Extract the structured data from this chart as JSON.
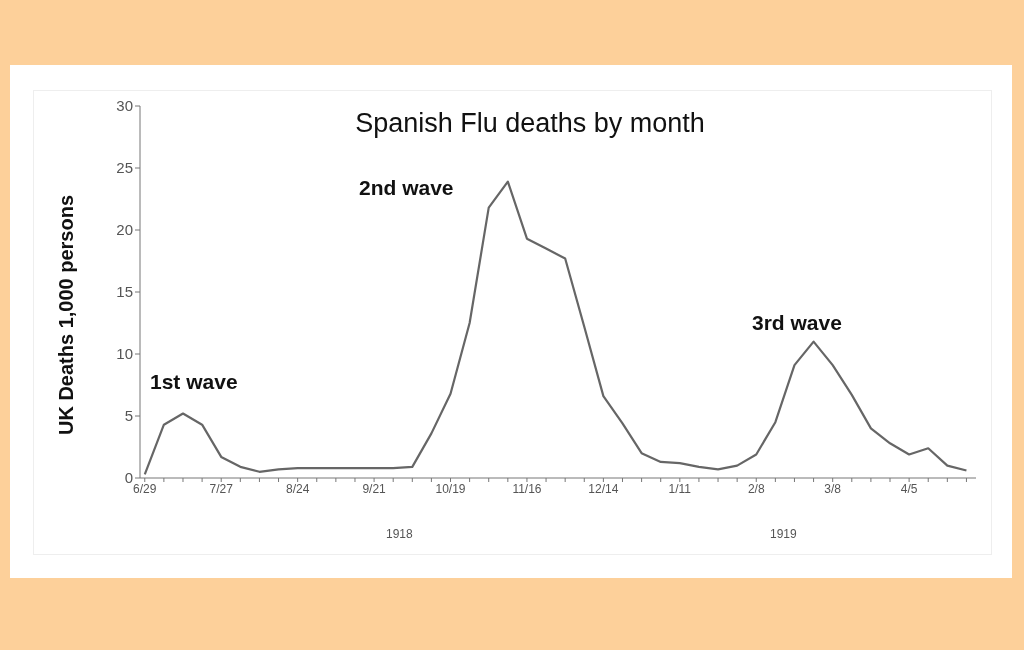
{
  "chart_data": {
    "type": "line",
    "title": "Spanish Flu deaths by month",
    "ylabel": "UK Deaths 1,000 persons",
    "categories": [
      "6/29",
      null,
      null,
      null,
      "7/27",
      null,
      null,
      null,
      "8/24",
      null,
      null,
      null,
      "9/21",
      null,
      null,
      null,
      "10/19",
      null,
      null,
      null,
      "11/16",
      null,
      null,
      null,
      "12/14",
      null,
      null,
      null,
      "1/11",
      null,
      null,
      null,
      "2/8",
      null,
      null,
      null,
      "3/8",
      null,
      null,
      null,
      "4/5",
      null,
      null,
      null
    ],
    "values": [
      0.3,
      4.3,
      5.2,
      4.3,
      1.7,
      0.9,
      0.5,
      0.7,
      0.8,
      0.8,
      0.8,
      0.8,
      0.8,
      0.8,
      0.9,
      3.6,
      6.8,
      12.5,
      21.8,
      23.9,
      19.3,
      18.5,
      17.7,
      12.2,
      6.6,
      4.4,
      2.0,
      1.3,
      1.2,
      0.9,
      0.7,
      1.0,
      1.9,
      4.5,
      9.1,
      11.0,
      9.1,
      6.7,
      4.0,
      2.8,
      1.9,
      2.4,
      1.0,
      0.6
    ],
    "color": "#666666",
    "ylim": [
      0,
      30
    ],
    "yticks": [
      0,
      5,
      10,
      15,
      20,
      25,
      30
    ],
    "grid": false,
    "marker": "none",
    "line_style": "solid",
    "annotations": [
      "1st wave",
      "2nd wave",
      "3rd wave",
      "1918",
      "1919"
    ]
  }
}
